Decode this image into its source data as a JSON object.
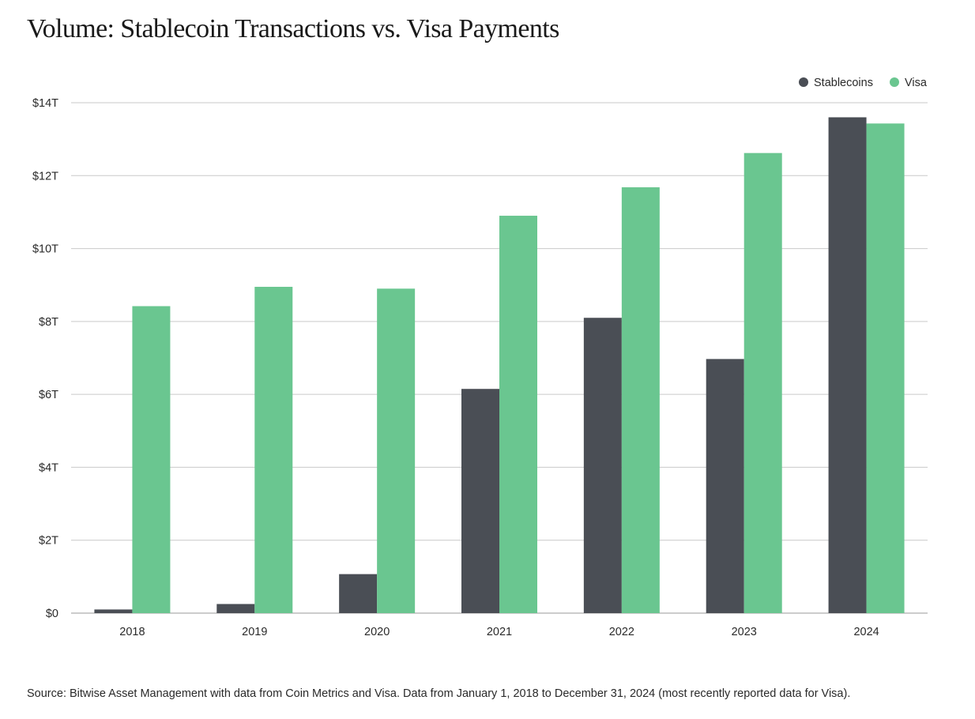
{
  "source_note": "Source: Bitwise Asset Management with data from Coin Metrics and Visa. Data from January 1, 2018 to December 31, 2024 (most recently reported data for Visa).",
  "chart_data": {
    "type": "bar",
    "title": "Volume: Stablecoin Transactions vs. Visa Payments",
    "xlabel": "",
    "ylabel": "",
    "categories": [
      "2018",
      "2019",
      "2020",
      "2021",
      "2022",
      "2023",
      "2024"
    ],
    "series": [
      {
        "name": "Stablecoins",
        "color": "#4a4e55",
        "values": [
          0.1,
          0.25,
          1.07,
          6.15,
          8.1,
          6.97,
          13.6
        ]
      },
      {
        "name": "Visa",
        "color": "#6ac690",
        "values": [
          8.42,
          8.95,
          8.9,
          10.9,
          11.68,
          12.62,
          13.43
        ]
      }
    ],
    "ylim": [
      0,
      14
    ],
    "yticks": [
      0,
      2,
      4,
      6,
      8,
      10,
      12,
      14
    ],
    "ytick_labels": [
      "$0",
      "$2T",
      "$4T",
      "$6T",
      "$8T",
      "$10T",
      "$12T",
      "$14T"
    ],
    "grid": true,
    "legend_position": "top-right"
  }
}
